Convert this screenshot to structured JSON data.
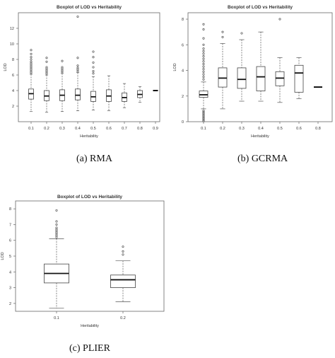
{
  "captions": {
    "a": "(a)  RMA",
    "b": "(b) GCRMA",
    "c": "(c)  PLIER"
  },
  "chart_data": [
    {
      "type": "boxplot",
      "title": "Boxplot of LOD vs Heritability",
      "xlabel": "Heritability",
      "ylabel": "LOD",
      "ylim": [
        0,
        14
      ],
      "yticks": [
        2,
        4,
        6,
        8,
        10,
        12
      ],
      "categories": [
        "0.1",
        "0.2",
        "0.3",
        "0.4",
        "0.5",
        "0.6",
        "0.7",
        "0.8",
        "0.9"
      ],
      "boxes": [
        {
          "min": 1.3,
          "q1": 2.9,
          "median": 3.6,
          "q3": 4.2,
          "max": 6.1,
          "outliers": [
            6.3,
            6.5,
            6.7,
            6.9,
            7.1,
            7.3,
            7.5,
            7.7,
            8.0,
            8.3,
            8.7,
            9.2
          ]
        },
        {
          "min": 1.2,
          "q1": 2.7,
          "median": 3.3,
          "q3": 4.0,
          "max": 6.0,
          "outliers": [
            6.2,
            6.4,
            6.6,
            6.8,
            7.0,
            7.7,
            8.2
          ]
        },
        {
          "min": 1.3,
          "q1": 2.7,
          "median": 3.4,
          "q3": 4.1,
          "max": 6.2,
          "outliers": [
            6.4,
            6.6,
            6.8,
            7.0,
            7.8
          ]
        },
        {
          "min": 1.4,
          "q1": 2.8,
          "median": 3.4,
          "q3": 4.2,
          "max": 6.3,
          "outliers": [
            6.5,
            6.7,
            6.9,
            7.2,
            8.2,
            13.5
          ]
        },
        {
          "min": 1.5,
          "q1": 2.6,
          "median": 3.2,
          "q3": 3.9,
          "max": 5.8,
          "outliers": [
            6.2,
            6.5,
            7.0,
            7.6,
            8.3,
            9.0
          ]
        },
        {
          "min": 1.4,
          "q1": 2.6,
          "median": 3.3,
          "q3": 4.1,
          "max": 5.9,
          "outliers": []
        },
        {
          "min": 1.8,
          "q1": 2.6,
          "median": 3.1,
          "q3": 3.7,
          "max": 4.9,
          "outliers": []
        },
        {
          "min": 2.5,
          "q1": 3.1,
          "median": 3.5,
          "q3": 4.0,
          "max": 4.5,
          "outliers": []
        },
        {
          "min": 4.0,
          "q1": 4.0,
          "median": 4.0,
          "q3": 4.0,
          "max": 4.0,
          "outliers": []
        }
      ]
    },
    {
      "type": "boxplot",
      "title": "Boxplot of LOD vs Heritability",
      "xlabel": "Heritability",
      "ylabel": "LOD",
      "ylim": [
        0,
        8.5
      ],
      "yticks": [
        0,
        2,
        4,
        6,
        8
      ],
      "categories": [
        "0.1",
        "0.2",
        "0.3",
        "0.4",
        "0.5",
        "0.6",
        "0.8"
      ],
      "boxes": [
        {
          "min": 1.0,
          "q1": 1.9,
          "median": 2.1,
          "q3": 2.4,
          "max": 3.1,
          "outliers": [
            0.05,
            0.15,
            0.25,
            0.35,
            0.45,
            0.55,
            0.65,
            0.75,
            0.85,
            3.3,
            3.5,
            3.7,
            3.9,
            4.1,
            4.3,
            4.5,
            4.7,
            4.9,
            5.1,
            5.3,
            5.5,
            5.7,
            6.0,
            6.5,
            7.2,
            7.6
          ]
        },
        {
          "min": 1.0,
          "q1": 2.7,
          "median": 3.4,
          "q3": 4.2,
          "max": 6.1,
          "outliers": [
            6.6,
            7.0
          ]
        },
        {
          "min": 1.6,
          "q1": 2.6,
          "median": 3.3,
          "q3": 4.2,
          "max": 6.4,
          "outliers": [
            6.9
          ]
        },
        {
          "min": 1.6,
          "q1": 2.4,
          "median": 3.5,
          "q3": 4.3,
          "max": 7.0,
          "outliers": []
        },
        {
          "min": 1.5,
          "q1": 2.8,
          "median": 3.4,
          "q3": 3.9,
          "max": 5.0,
          "outliers": [
            8.0
          ]
        },
        {
          "min": 1.8,
          "q1": 2.3,
          "median": 3.8,
          "q3": 4.4,
          "max": 5.0,
          "outliers": []
        },
        {
          "min": 2.7,
          "q1": 2.7,
          "median": 2.7,
          "q3": 2.7,
          "max": 2.7,
          "outliers": []
        }
      ]
    },
    {
      "type": "boxplot",
      "title": "Boxplot of LOD vs Heritability",
      "xlabel": "Heritability",
      "ylabel": "LOD",
      "ylim": [
        1.5,
        8.5
      ],
      "yticks": [
        2,
        3,
        4,
        5,
        6,
        7,
        8
      ],
      "categories": [
        "0.1",
        "0.2"
      ],
      "boxes": [
        {
          "min": 1.7,
          "q1": 3.3,
          "median": 3.9,
          "q3": 4.5,
          "max": 6.1,
          "outliers": [
            6.2,
            6.3,
            6.4,
            6.5,
            6.6,
            6.7,
            6.8,
            7.0,
            7.2,
            7.9
          ]
        },
        {
          "min": 2.1,
          "q1": 3.0,
          "median": 3.5,
          "q3": 3.8,
          "max": 4.7,
          "outliers": [
            5.1,
            5.3,
            5.6
          ]
        }
      ]
    }
  ]
}
